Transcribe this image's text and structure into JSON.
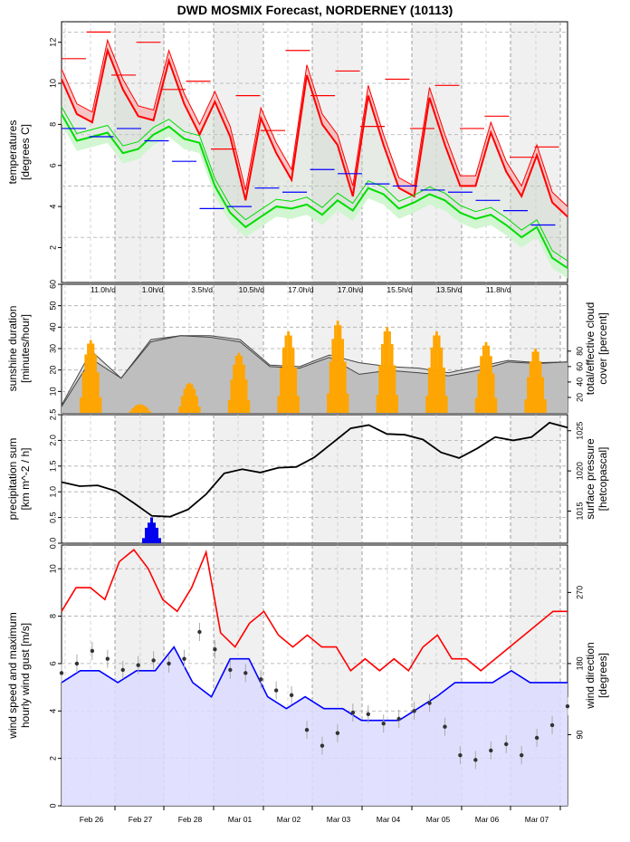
{
  "title": "DWD MOSMIX Forecast, NORDERNEY (10113)",
  "colors": {
    "temp_max": "#ff0000",
    "temp_min": "#00dd00",
    "temp_band_red": "#f4b8b8",
    "temp_band_green": "#ccf5cc",
    "daily_max": "#ff0000",
    "daily_min": "#0000ff",
    "sunshine": "#ffa500",
    "cloud": "#bebebe",
    "precip": "#0000ee",
    "pressure": "#000000",
    "gust": "#ff0000",
    "wind_speed": "#0000ff",
    "wind_fill": "#dcdcff",
    "wind_dir": "#333333",
    "night_shade": "#f0f0f0"
  },
  "chart_data": [
    {
      "type": "line",
      "name": "temperatures",
      "ylabel": "temperatures\n[degrees C]",
      "ylim": [
        0.3,
        13
      ],
      "yticks": [
        2,
        4,
        6,
        8,
        10,
        12
      ],
      "grid": true,
      "x_days": [
        "Feb 26",
        "Feb 27",
        "Feb 28",
        "Mar 01",
        "Mar 02",
        "Mar 03",
        "Mar 04",
        "Mar 05",
        "Mar 06",
        "Mar 07"
      ],
      "series": [
        {
          "name": "max temperature",
          "values": [
            10.2,
            8.5,
            8.1,
            11.6,
            9.7,
            8.4,
            8.2,
            11.1,
            9.0,
            7.5,
            9.1,
            7.4,
            4.3,
            8.3,
            6.6,
            5.3,
            10.4,
            8.0,
            7.0,
            4.5,
            9.4,
            7.0,
            4.9,
            4.5,
            9.3,
            7.0,
            5.0,
            5.0,
            7.6,
            5.7,
            4.5,
            6.5,
            4.2,
            3.5
          ]
        },
        {
          "name": "min temperature",
          "values": [
            8.5,
            7.2,
            7.4,
            7.6,
            6.6,
            6.8,
            7.5,
            7.9,
            7.3,
            7.1,
            5.0,
            3.7,
            3.0,
            3.5,
            4.0,
            3.9,
            4.1,
            3.6,
            4.3,
            3.8,
            4.9,
            4.6,
            3.9,
            4.2,
            4.6,
            4.3,
            3.7,
            3.4,
            3.6,
            3.1,
            2.5,
            3.0,
            1.5,
            1.0
          ]
        }
      ],
      "daily_max": [
        11.2,
        12.5,
        10.4,
        12.0,
        9.7,
        10.1,
        6.8,
        9.4,
        7.7,
        11.6,
        9.4,
        10.6,
        7.9,
        10.2,
        7.8,
        9.9,
        7.8,
        8.4,
        6.4,
        6.9
      ],
      "daily_min": [
        7.8,
        7.4,
        7.8,
        7.2,
        6.2,
        3.9,
        4.0,
        4.9,
        4.7,
        5.8,
        5.6,
        5.1,
        5.0,
        4.8,
        4.7,
        4.3,
        3.8,
        3.1
      ]
    },
    {
      "type": "bar",
      "name": "sunshine and cloud cover",
      "ylabel": "sunshine duration\n[minutes/hour]",
      "ylabel_right": "total/effective cloud\ncover [percent]",
      "ylim": [
        0,
        60
      ],
      "yticks": [
        10,
        20,
        30,
        40,
        50,
        60
      ],
      "yticks_right": [
        20,
        40,
        60,
        80
      ],
      "daily_sunshine_labels": [
        "11.0h/d",
        "1.0h/d",
        "3.5h/d",
        "10.5h/d",
        "17.0h/d",
        "17.0h/d",
        "15.5h/d",
        "13.5h/d",
        "11.8h/d"
      ],
      "sunshine_peaks_min_per_hour": [
        34,
        4,
        14,
        28,
        38,
        43,
        40,
        38,
        33,
        30
      ],
      "cloud_total_percent": [
        10,
        80,
        45,
        95,
        100,
        100,
        95,
        62,
        60,
        75,
        65,
        60,
        58,
        52,
        60,
        68,
        65,
        66
      ],
      "cloud_effective_percent": [
        8,
        70,
        45,
        92,
        100,
        98,
        92,
        60,
        58,
        72,
        50,
        55,
        52,
        48,
        55,
        66,
        64,
        66
      ]
    },
    {
      "type": "line",
      "name": "precipitation and pressure",
      "ylabel": "precipitation sum\n[km m^-2 / h]",
      "ylabel_right": "surface pressure\n[hetcopascal]",
      "ylim": [
        0,
        2.5
      ],
      "yticks": [
        0.0,
        0.5,
        1.0,
        1.5,
        2.0,
        2.5
      ],
      "yticks_right": [
        1015,
        1020,
        1025
      ],
      "precip_peak": 0.5,
      "pressure_hpa": [
        1018.6,
        1018.1,
        1018.2,
        1017.5,
        1016.0,
        1014.4,
        1014.3,
        1015.2,
        1017.1,
        1019.7,
        1020.2,
        1019.8,
        1020.4,
        1020.5,
        1021.7,
        1023.5,
        1025.3,
        1025.7,
        1024.6,
        1024.5,
        1023.9,
        1022.3,
        1021.6,
        1022.8,
        1024.2,
        1023.8,
        1024.2,
        1026.0,
        1025.4
      ]
    },
    {
      "type": "line",
      "name": "wind",
      "ylabel": "wind speed and maximum\nhourly wind gust [m/s]",
      "ylabel_right": "wind direction\n[degrees]",
      "ylim": [
        0,
        11
      ],
      "yticks": [
        0,
        2,
        4,
        6,
        8,
        10
      ],
      "yticks_right": [
        90,
        180,
        270
      ],
      "gust_ms": [
        8.2,
        9.2,
        9.2,
        8.7,
        10.3,
        10.8,
        10.0,
        8.7,
        8.2,
        9.2,
        10.7,
        7.3,
        6.7,
        7.7,
        8.2,
        7.2,
        6.7,
        7.2,
        6.7,
        6.7,
        5.7,
        6.2,
        5.7,
        6.2,
        5.7,
        6.7,
        7.2,
        6.2,
        6.2,
        5.7,
        6.2,
        6.7,
        7.2,
        7.7,
        8.2,
        8.2
      ],
      "wind_ms": [
        5.2,
        5.7,
        5.7,
        5.2,
        5.7,
        5.7,
        6.7,
        5.2,
        4.6,
        6.2,
        6.2,
        4.6,
        4.1,
        4.6,
        4.1,
        4.1,
        3.6,
        3.6,
        3.6,
        4.1,
        4.6,
        5.2,
        5.2,
        5.2,
        5.7,
        5.2,
        5.2,
        5.2
      ],
      "wind_dir_deg": [
        168,
        180,
        196,
        186,
        172,
        178,
        184,
        180,
        186,
        220,
        198,
        172,
        168,
        160,
        146,
        140,
        96,
        76,
        92,
        118,
        116,
        104,
        110,
        120,
        130,
        100,
        64,
        58,
        70,
        78,
        64,
        86,
        102,
        126
      ]
    }
  ]
}
